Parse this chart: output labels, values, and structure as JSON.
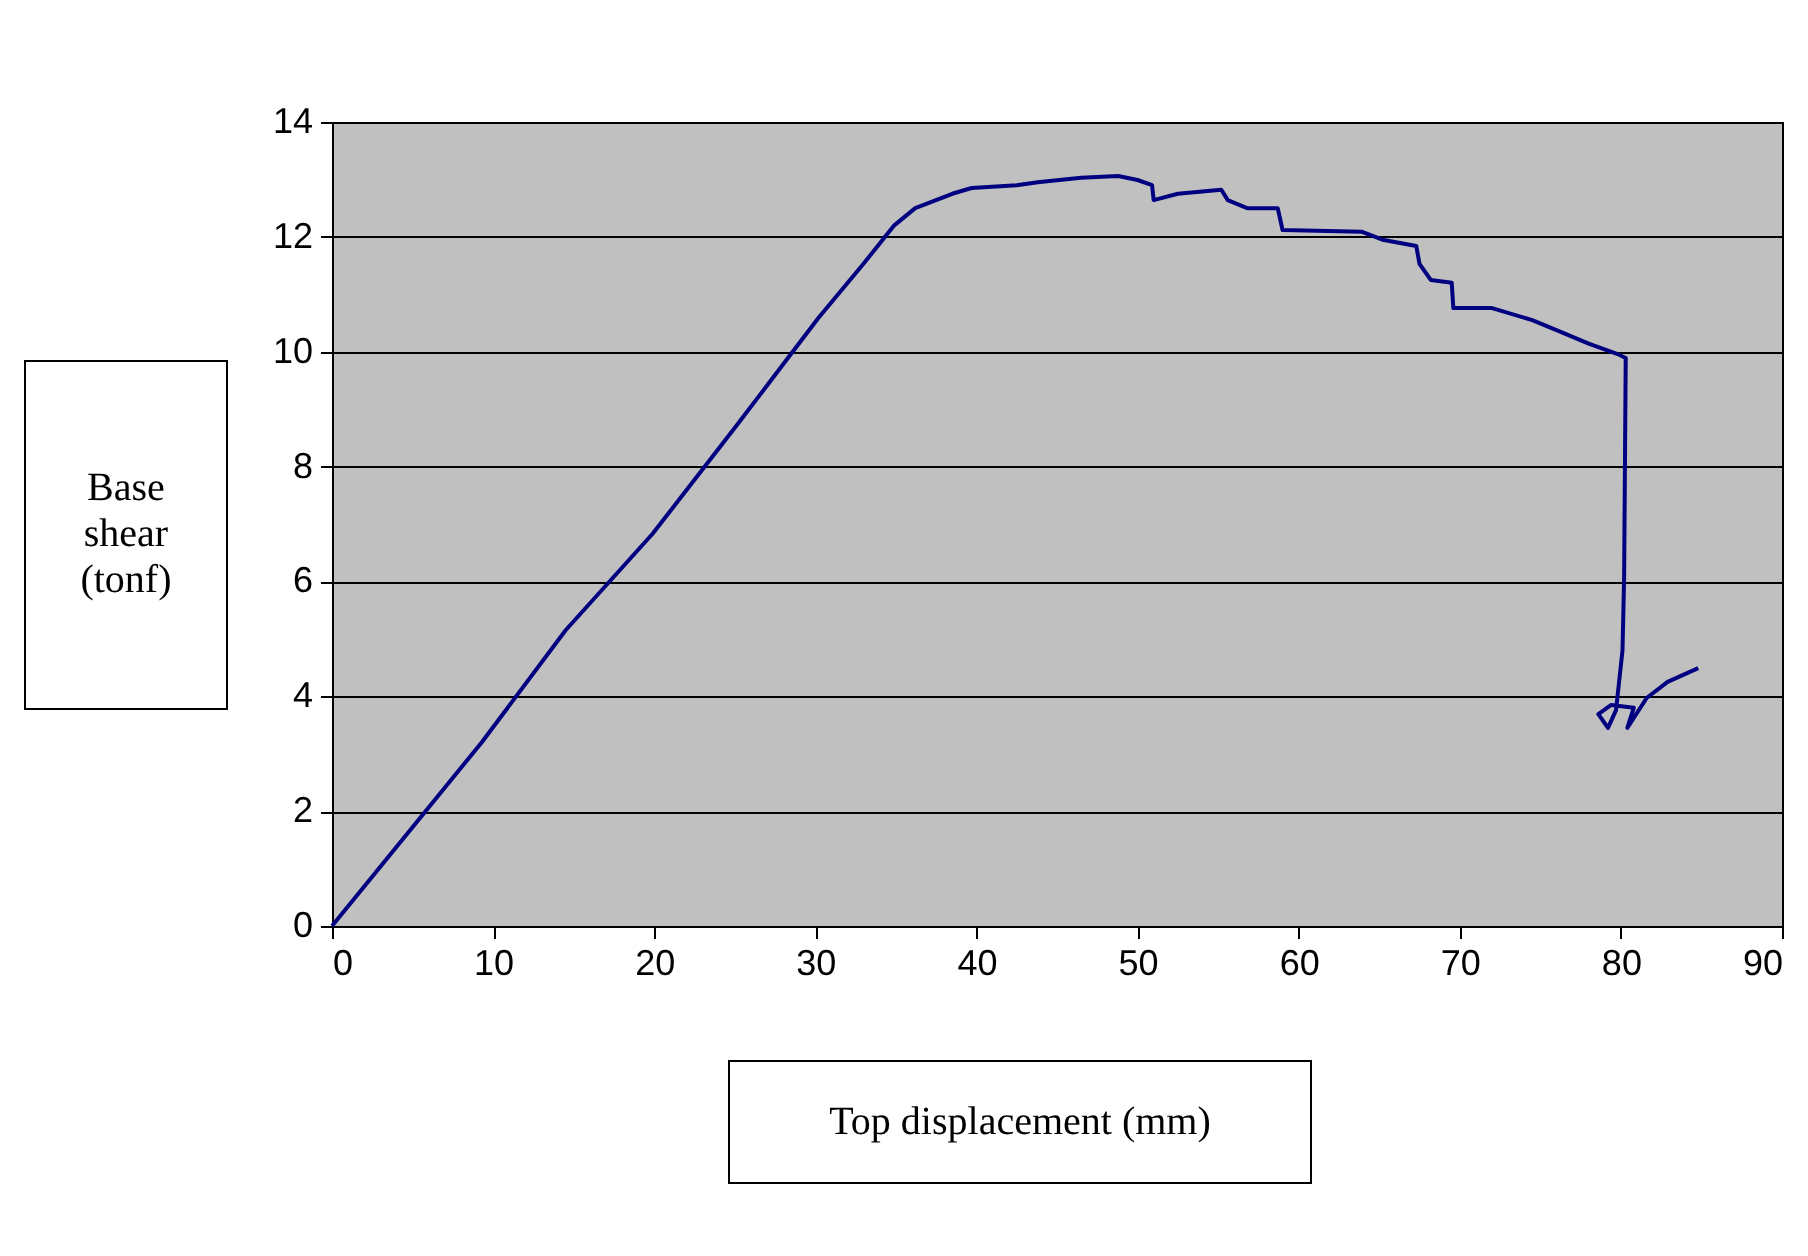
{
  "chart_data": {
    "type": "line",
    "xlabel": "Top displacement (mm)",
    "ylabel": "Base shear (tonf)",
    "xlim": [
      0,
      90
    ],
    "xticks": [
      0,
      10,
      20,
      30,
      40,
      50,
      60,
      70,
      80,
      90
    ],
    "ylim": [
      0,
      14
    ],
    "yticks": [
      0,
      2,
      4,
      6,
      8,
      10,
      12,
      14
    ],
    "grid": "y",
    "legend": false,
    "series": [
      {
        "color": "#000080",
        "x": [
          0,
          9.3,
          14.5,
          19.9,
          25.1,
          30.2,
          32.9,
          34.9,
          36.2,
          38.5,
          39.7,
          42.5,
          43.8,
          46.5,
          48.8,
          50.0,
          50.9,
          51.0,
          52.5,
          55.2,
          55.6,
          56.8,
          58.7,
          59.0,
          63.9,
          65.2,
          67.3,
          67.5,
          68.2,
          69.5,
          69.6,
          72.0,
          74.5,
          76.3,
          78.0,
          79.8,
          80.3,
          80.2,
          80.1,
          79.7,
          79.2,
          78.6,
          79.4,
          80.8,
          80.4,
          81.6,
          82.9,
          84.8
        ],
        "values": [
          0,
          3.2,
          5.15,
          6.83,
          8.71,
          10.59,
          11.5,
          12.2,
          12.5,
          12.75,
          12.85,
          12.9,
          12.95,
          13.03,
          13.06,
          12.99,
          12.9,
          12.64,
          12.75,
          12.82,
          12.64,
          12.5,
          12.5,
          12.12,
          12.09,
          11.95,
          11.84,
          11.53,
          11.25,
          11.2,
          10.76,
          10.76,
          10.55,
          10.34,
          10.14,
          9.96,
          9.89,
          6.06,
          4.8,
          3.76,
          3.45,
          3.69,
          3.85,
          3.8,
          3.45,
          3.97,
          4.25,
          4.49
        ]
      }
    ]
  }
}
